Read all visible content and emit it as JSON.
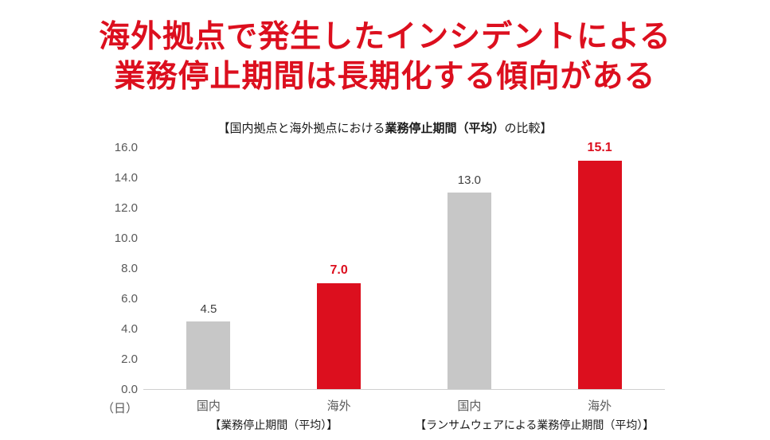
{
  "title": {
    "line1": "海外拠点で発生したインシデントによる",
    "line2": "業務停止期間は長期化する傾向がある"
  },
  "chart_data": {
    "type": "bar",
    "subtitle_prefix": "【国内拠点と海外拠点における",
    "subtitle_bold": "業務停止期間（平均）",
    "subtitle_suffix": "の比較】",
    "unit": "（日）",
    "ylim": [
      0,
      16
    ],
    "ytick_step": 2,
    "ytick_labels": [
      "0.0",
      "2.0",
      "4.0",
      "6.0",
      "8.0",
      "10.0",
      "12.0",
      "14.0",
      "16.0"
    ],
    "categories": [
      "国内",
      "海外",
      "国内",
      "海外"
    ],
    "values": [
      4.5,
      7.0,
      13.0,
      15.1
    ],
    "value_labels": [
      "4.5",
      "7.0",
      "13.0",
      "15.1"
    ],
    "bar_colors": [
      "gray",
      "red",
      "gray",
      "red"
    ],
    "groups": [
      {
        "label": "【業務停止期間（平均）】",
        "bars": [
          0,
          1
        ]
      },
      {
        "label": "【ランサムウェアによる業務停止期間（平均）】",
        "bars": [
          2,
          3
        ]
      }
    ],
    "colors": {
      "gray": "#c7c7c7",
      "red": "#dc0f1e",
      "title_red": "#dc0f1e",
      "gray_value_text": "#404040",
      "axis_text": "#595959"
    },
    "legend": "none",
    "grid": "off"
  }
}
